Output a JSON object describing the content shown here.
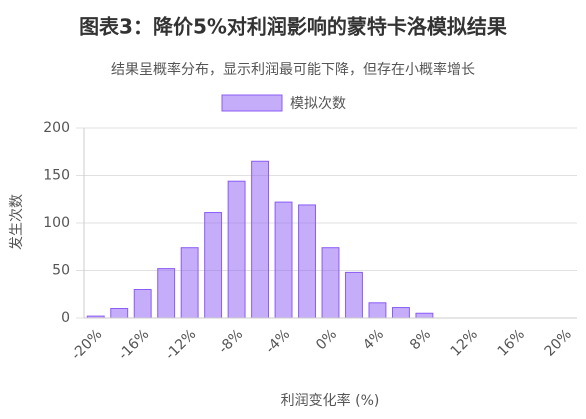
{
  "chart_data": {
    "type": "bar",
    "title": "图表3：降价5%对利润影响的蒙特卡洛模拟结果",
    "subtitle": "结果呈概率分布，显示利润最可能下降，但存在小概率增长",
    "x_label": "利润变化率 (%)",
    "y_label": "发生次数",
    "categories": [
      "-20%",
      null,
      "-16%",
      null,
      "-12%",
      null,
      "-8%",
      null,
      "-4%",
      null,
      "0%",
      null,
      "4%",
      null,
      "8%",
      null,
      "12%",
      null,
      "16%",
      null,
      "20%"
    ],
    "series": [
      {
        "name": "模拟次数",
        "color": "#8b5cf6",
        "values": [
          2,
          10,
          30,
          52,
          74,
          111,
          144,
          165,
          122,
          119,
          74,
          48,
          16,
          11,
          5,
          0,
          0,
          0,
          0,
          0,
          0
        ]
      }
    ],
    "ylim": [
      0,
      200
    ],
    "yticks": [
      0,
      50,
      100,
      150,
      200
    ],
    "grid": true,
    "legend": "top"
  }
}
